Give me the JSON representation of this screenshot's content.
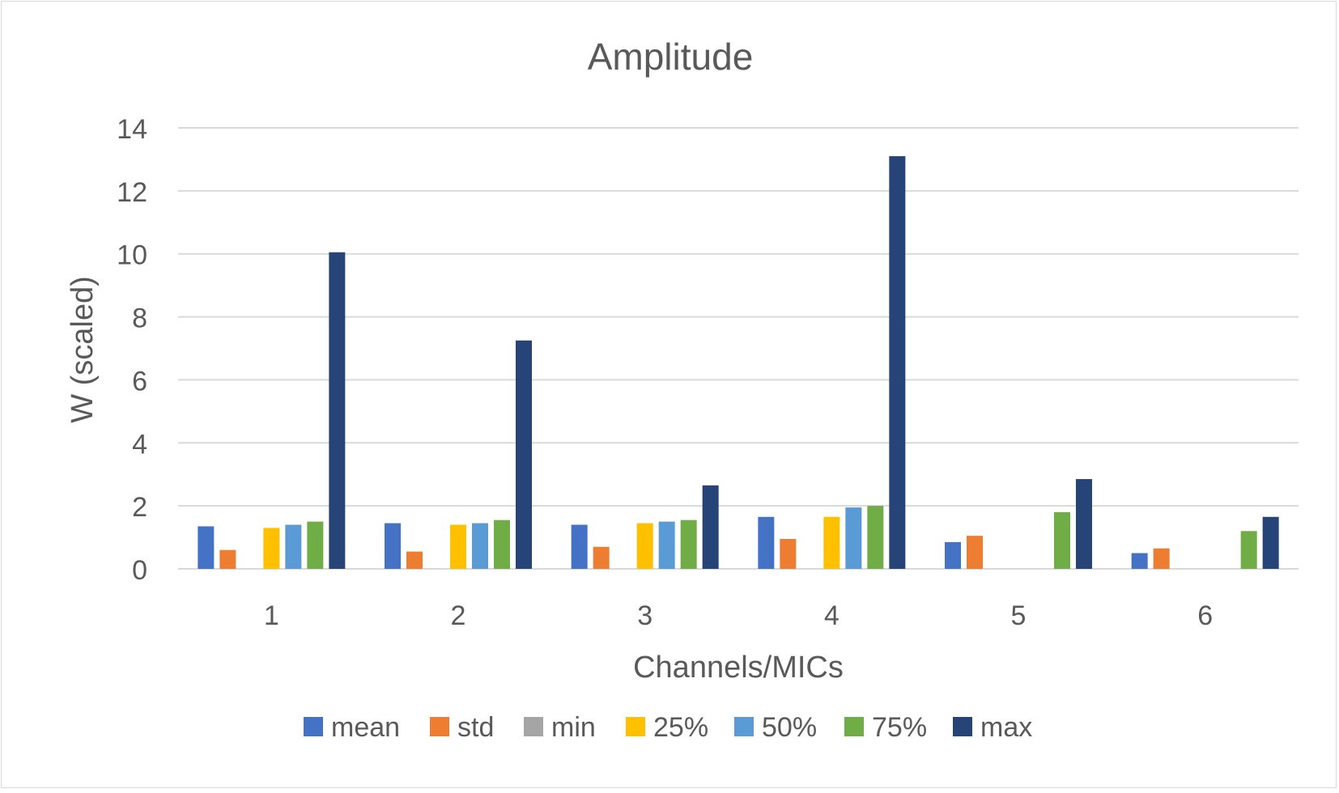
{
  "chart_data": {
    "type": "bar",
    "title": "Amplitude",
    "xlabel": "Channels/MICs",
    "ylabel": "W (scaled)",
    "categories": [
      "1",
      "2",
      "3",
      "4",
      "5",
      "6"
    ],
    "ylim": [
      0,
      14
    ],
    "yticks": [
      0,
      2,
      4,
      6,
      8,
      10,
      12,
      14
    ],
    "grid": true,
    "legend_position": "bottom",
    "series": [
      {
        "name": "mean",
        "color": "#4472C4",
        "values": [
          1.35,
          1.45,
          1.4,
          1.65,
          0.85,
          0.5
        ]
      },
      {
        "name": "std",
        "color": "#ED7D31",
        "values": [
          0.6,
          0.55,
          0.7,
          0.95,
          1.05,
          0.65
        ]
      },
      {
        "name": "min",
        "color": "#A5A5A5",
        "values": [
          0,
          0,
          0,
          0,
          0,
          0
        ]
      },
      {
        "name": "25%",
        "color": "#FFC000",
        "values": [
          1.3,
          1.4,
          1.45,
          1.65,
          0,
          0
        ]
      },
      {
        "name": "50%",
        "color": "#5B9BD5",
        "values": [
          1.4,
          1.45,
          1.5,
          1.95,
          0,
          0
        ]
      },
      {
        "name": "75%",
        "color": "#70AD47",
        "values": [
          1.5,
          1.55,
          1.55,
          2.0,
          1.8,
          1.2
        ]
      },
      {
        "name": "max",
        "color": "#264478",
        "values": [
          10.05,
          7.25,
          2.65,
          13.1,
          2.85,
          1.65
        ]
      }
    ]
  }
}
